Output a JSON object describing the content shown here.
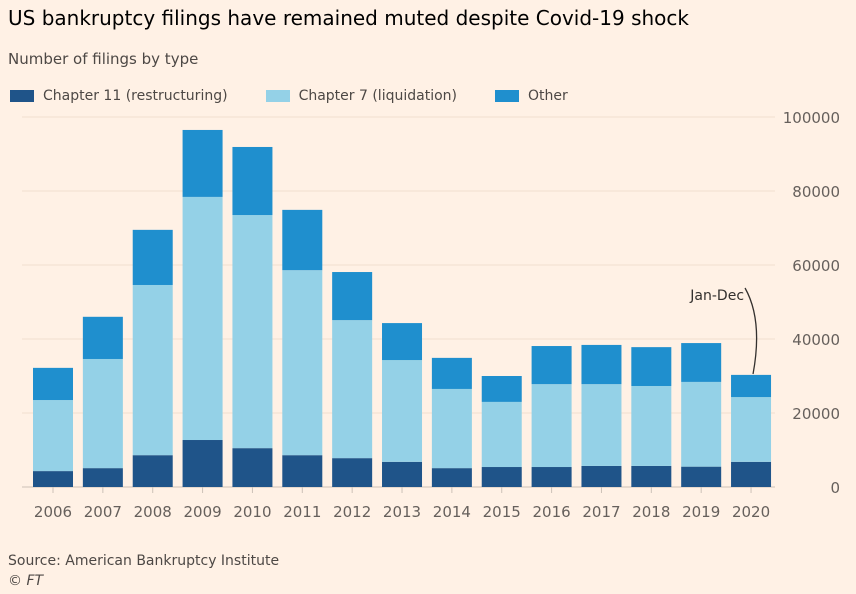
{
  "title": "US bankruptcy filings have remained muted despite Covid-19 shock",
  "subtitle": "Number of filings by type",
  "source": "Source: American Bankruptcy Institute",
  "credit": "© FT",
  "chart_data": {
    "type": "bar",
    "stacked": true,
    "categories": [
      "2006",
      "2007",
      "2008",
      "2009",
      "2010",
      "2011",
      "2012",
      "2013",
      "2014",
      "2015",
      "2016",
      "2017",
      "2018",
      "2019",
      "2020"
    ],
    "series": [
      {
        "name": "Chapter 11 (restructuring)",
        "color": "#1f5489",
        "values": [
          4300,
          5100,
          8600,
          12700,
          10500,
          8600,
          7800,
          6800,
          5100,
          5400,
          5400,
          5700,
          5700,
          5500,
          6800
        ]
      },
      {
        "name": "Chapter 7 (liquidation)",
        "color": "#94d1e7",
        "values": [
          19200,
          29500,
          46000,
          65700,
          63000,
          50000,
          37300,
          27500,
          21400,
          17600,
          22400,
          22100,
          21600,
          22900,
          17500
        ]
      },
      {
        "name": "Other",
        "color": "#1f8fce",
        "values": [
          8700,
          11400,
          14900,
          18100,
          18400,
          16300,
          13000,
          10000,
          8400,
          7000,
          10300,
          10600,
          10500,
          10500,
          6000
        ]
      }
    ],
    "ylim": [
      0,
      100000
    ],
    "yticks": [
      "0",
      "20000",
      "40000",
      "60000",
      "80000",
      "100000"
    ],
    "yaxis_position": "right",
    "grid": true,
    "legend_placement": "top-left",
    "annotation": {
      "text": "Jan-Dec",
      "category": "2020"
    }
  }
}
